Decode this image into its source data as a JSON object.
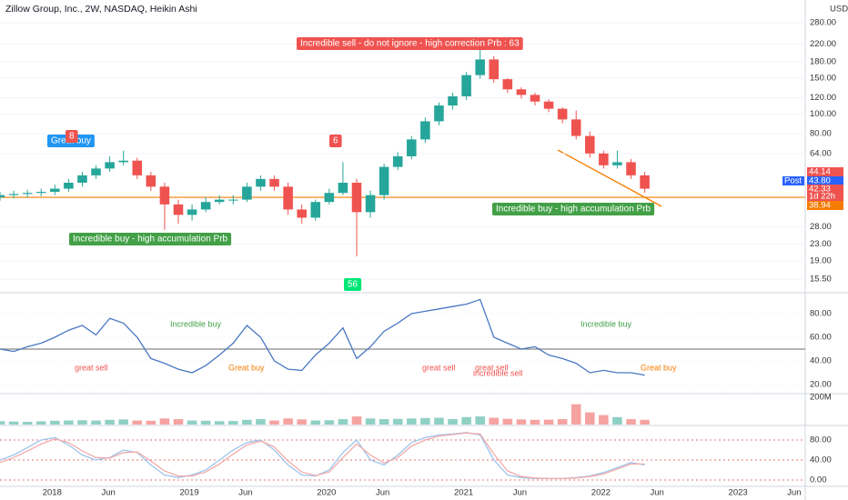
{
  "chart_data": [
    {
      "type": "candlestick",
      "title": "Zillow Group, Inc., 2W, NASDAQ, Heikin Ashi",
      "unit": "USD",
      "log_scale": true,
      "grid": true,
      "x": [
        2017.62,
        2017.72,
        2017.82,
        2017.92,
        2018.02,
        2018.12,
        2018.22,
        2018.32,
        2018.42,
        2018.52,
        2018.62,
        2018.72,
        2018.82,
        2018.92,
        2019.02,
        2019.12,
        2019.22,
        2019.32,
        2019.42,
        2019.52,
        2019.62,
        2019.72,
        2019.82,
        2019.92,
        2020.02,
        2020.12,
        2020.22,
        2020.32,
        2020.42,
        2020.52,
        2020.62,
        2020.72,
        2020.82,
        2020.92,
        2021.02,
        2021.12,
        2021.22,
        2021.32,
        2021.42,
        2021.52,
        2021.62,
        2021.72,
        2021.82,
        2021.92,
        2022.02,
        2022.12,
        2022.22,
        2022.32
      ],
      "open": [
        39,
        40,
        40.5,
        41,
        41.5,
        43,
        46,
        50,
        54,
        58,
        59,
        50,
        44,
        36,
        32,
        34,
        37,
        38,
        38,
        44,
        48,
        44,
        34,
        31,
        37,
        41,
        46,
        33,
        40,
        55,
        62,
        75,
        92,
        110,
        122,
        155,
        185,
        148,
        132,
        124,
        115,
        106,
        94,
        78,
        64,
        56,
        58,
        50
      ],
      "high": [
        41.5,
        42,
        42.5,
        43,
        45,
        48,
        52,
        56,
        62,
        66,
        61,
        52,
        46,
        38,
        36,
        39,
        40,
        40,
        46,
        50,
        50,
        46,
        36,
        38,
        43,
        58,
        48,
        42,
        57,
        65,
        78,
        96,
        114,
        127,
        161,
        212,
        192,
        150,
        135,
        127,
        118,
        108,
        104,
        82,
        66,
        66,
        60,
        52
      ],
      "low": [
        37.5,
        38.5,
        39,
        39.5,
        40,
        41.5,
        44,
        48,
        52,
        56,
        48,
        42,
        27,
        29,
        30,
        33,
        36,
        36,
        37,
        42,
        42,
        32,
        29,
        30,
        36,
        40,
        20,
        31,
        38,
        53,
        60,
        72,
        88,
        105,
        117,
        149,
        142,
        127,
        119,
        110,
        102,
        90,
        75,
        61,
        54,
        54,
        48,
        41
      ],
      "close": [
        40,
        40.5,
        41,
        41.5,
        43,
        46,
        50,
        54,
        58,
        59,
        50,
        44,
        36,
        32,
        34,
        37,
        38,
        38,
        44,
        48,
        44,
        34,
        31,
        37,
        41,
        46,
        33,
        40,
        55,
        62,
        75,
        92,
        110,
        122,
        155,
        185,
        148,
        132,
        124,
        115,
        106,
        94,
        78,
        64,
        56,
        58,
        50,
        43
      ],
      "up_color": "#26a69a",
      "down_color": "#ef5350",
      "xlim": [
        2017.62,
        2023.49
      ],
      "xticks": [
        {
          "value": 2018,
          "label": "2018"
        },
        {
          "value": 2018.41,
          "label": "Jun"
        },
        {
          "value": 2019,
          "label": "2019"
        },
        {
          "value": 2019.41,
          "label": "Jun"
        },
        {
          "value": 2020,
          "label": "2020"
        },
        {
          "value": 2020.41,
          "label": "Jun"
        },
        {
          "value": 2021,
          "label": "2021"
        },
        {
          "value": 2021.41,
          "label": "Jun"
        },
        {
          "value": 2022,
          "label": "2022"
        },
        {
          "value": 2022.41,
          "label": "Jun"
        },
        {
          "value": 2023,
          "label": "2023"
        },
        {
          "value": 2023.41,
          "label": "Jun"
        }
      ],
      "ylim": [
        13.56,
        362
      ],
      "yticks": [
        {
          "value": 280,
          "label": "280.00"
        },
        {
          "value": 220,
          "label": "220.00"
        },
        {
          "value": 180,
          "label": "180.00"
        },
        {
          "value": 150,
          "label": "150.00"
        },
        {
          "value": 120,
          "label": "120.00"
        },
        {
          "value": 100,
          "label": "100.00"
        },
        {
          "value": 80,
          "label": "80.00"
        },
        {
          "value": 64,
          "label": "64.00"
        },
        {
          "value": 28,
          "label": "28.00"
        },
        {
          "value": 23,
          "label": "23.00"
        },
        {
          "value": 19,
          "label": "19.00"
        },
        {
          "value": 15.5,
          "label": "15.50"
        }
      ],
      "hline": 39,
      "hline_color": "#f57c00",
      "price_labels": [
        {
          "label": "44.14",
          "color": "#ef5350"
        },
        {
          "label": "Post",
          "color": "#2962ff"
        },
        {
          "label": "43.80",
          "color": "#2962ff"
        },
        {
          "label": "42.33",
          "color": "#ef5350"
        },
        {
          "label": "1d 22h",
          "color": "#ef5350"
        },
        {
          "label": "38.94",
          "color": "#f57c00"
        }
      ],
      "annotations": [
        {
          "text": "Great buy",
          "color": "#2196f3"
        },
        {
          "text": "8",
          "color": "#ef5350"
        },
        {
          "text": "Incredible sell - do not ignore - high correction Prb : 63",
          "color": "#ef5350"
        },
        {
          "text": "6",
          "color": "#ef5350"
        },
        {
          "text": "Incredible buy - high accumulation Prb",
          "color": "#43a047"
        },
        {
          "text": "Incredible buy - high accumulation Prb",
          "color": "#43a047"
        },
        {
          "text": "56",
          "color": "#00e676"
        }
      ]
    },
    {
      "type": "line",
      "color": "#4a78c2",
      "values": [
        50,
        48,
        52,
        55,
        60,
        66,
        70,
        62,
        76,
        72,
        60,
        42,
        38,
        33,
        30,
        36,
        45,
        55,
        70,
        60,
        40,
        33,
        32,
        45,
        55,
        68,
        42,
        52,
        65,
        72,
        80,
        82,
        84,
        86,
        88,
        92,
        60,
        55,
        50,
        52,
        45,
        42,
        38,
        30,
        32,
        30,
        30,
        28
      ],
      "ylim": [
        13.1,
        96.9
      ],
      "yticks": [
        {
          "value": 80,
          "label": "80.00"
        },
        {
          "value": 60,
          "label": "60.00"
        },
        {
          "value": 40,
          "label": "40.00"
        },
        {
          "value": 20,
          "label": "20.00"
        }
      ],
      "hline": 50,
      "hline_color": "#888888",
      "annotations": [
        {
          "text": "Incredible buy",
          "color": "#43a047"
        },
        {
          "text": "Incredible buy",
          "color": "#43a047"
        },
        {
          "text": "great sell",
          "color": "#ef5350"
        },
        {
          "text": "Great buy",
          "color": "#f57c00"
        },
        {
          "text": "great sell",
          "color": "#ef5350"
        },
        {
          "text": "great sell",
          "color": "#ef5350"
        },
        {
          "text": "incredible sell",
          "color": "#ef5350"
        },
        {
          "text": "Great buy",
          "color": "#f57c00"
        }
      ]
    },
    {
      "type": "bar",
      "values": [
        25,
        22,
        20,
        24,
        28,
        30,
        32,
        30,
        35,
        38,
        30,
        28,
        45,
        40,
        30,
        28,
        25,
        26,
        35,
        40,
        30,
        45,
        38,
        30,
        32,
        40,
        60,
        45,
        40,
        42,
        45,
        48,
        50,
        40,
        55,
        60,
        50,
        42,
        38,
        35,
        36,
        40,
        150,
        90,
        70,
        55,
        40,
        35
      ],
      "ylim": [
        0,
        215
      ],
      "yticks": [
        {
          "value": 200,
          "label": "200M"
        }
      ]
    },
    {
      "type": "line",
      "series": [
        {
          "color": "#9ec5ee",
          "values": [
            40,
            50,
            65,
            80,
            85,
            70,
            50,
            40,
            45,
            60,
            55,
            30,
            10,
            5,
            10,
            20,
            40,
            60,
            75,
            80,
            60,
            30,
            10,
            8,
            20,
            55,
            80,
            40,
            30,
            50,
            75,
            85,
            90,
            92,
            95,
            90,
            40,
            10,
            5,
            3,
            3,
            3,
            5,
            8,
            15,
            25,
            35,
            30
          ]
        },
        {
          "color": "#f2aaaa",
          "values": [
            35,
            45,
            58,
            72,
            82,
            75,
            58,
            45,
            44,
            55,
            56,
            38,
            18,
            8,
            8,
            16,
            32,
            52,
            70,
            78,
            66,
            38,
            16,
            9,
            16,
            45,
            72,
            50,
            34,
            45,
            68,
            80,
            88,
            91,
            94,
            92,
            52,
            18,
            7,
            4,
            3,
            3,
            4,
            7,
            12,
            22,
            32,
            32
          ]
        }
      ],
      "ylim": [
        -12.7,
        105.5
      ],
      "yticks": [
        {
          "value": 80,
          "label": "80.00"
        },
        {
          "value": 40,
          "label": "40.00"
        },
        {
          "value": 0,
          "label": "0.00"
        }
      ]
    }
  ]
}
